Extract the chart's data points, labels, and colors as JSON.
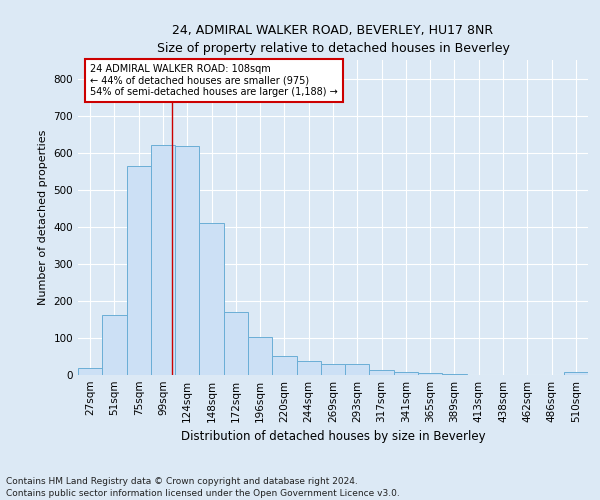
{
  "title": "24, ADMIRAL WALKER ROAD, BEVERLEY, HU17 8NR",
  "subtitle": "Size of property relative to detached houses in Beverley",
  "xlabel": "Distribution of detached houses by size in Beverley",
  "ylabel": "Number of detached properties",
  "categories": [
    "27sqm",
    "51sqm",
    "75sqm",
    "99sqm",
    "124sqm",
    "148sqm",
    "172sqm",
    "196sqm",
    "220sqm",
    "244sqm",
    "269sqm",
    "293sqm",
    "317sqm",
    "341sqm",
    "365sqm",
    "389sqm",
    "413sqm",
    "438sqm",
    "462sqm",
    "486sqm",
    "510sqm"
  ],
  "values": [
    18,
    163,
    563,
    620,
    618,
    411,
    170,
    103,
    52,
    39,
    30,
    30,
    14,
    9,
    5,
    4,
    0,
    0,
    0,
    0,
    7
  ],
  "bar_color": "#cce0f5",
  "bar_edge_color": "#6aaed6",
  "vline_color": "#cc0000",
  "annotation_text": "24 ADMIRAL WALKER ROAD: 108sqm\n← 44% of detached houses are smaller (975)\n54% of semi-detached houses are larger (1,188) →",
  "annotation_box_color": "#ffffff",
  "annotation_box_edge_color": "#cc0000",
  "ylim": [
    0,
    850
  ],
  "yticks": [
    0,
    100,
    200,
    300,
    400,
    500,
    600,
    700,
    800
  ],
  "footer_line1": "Contains HM Land Registry data © Crown copyright and database right 2024.",
  "footer_line2": "Contains public sector information licensed under the Open Government Licence v3.0.",
  "bg_color": "#dce9f5",
  "plot_bg_color": "#dce9f5"
}
